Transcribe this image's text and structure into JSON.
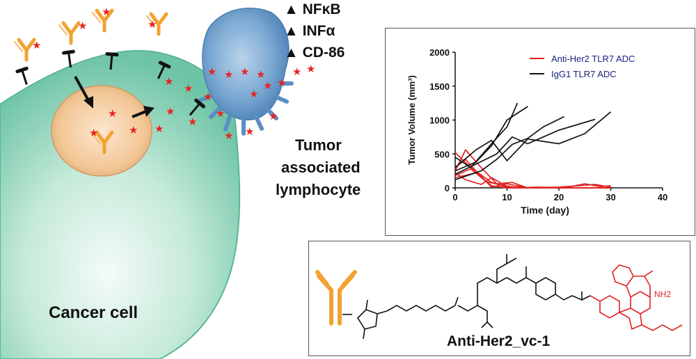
{
  "diagram": {
    "cancer_cell_label": "Cancer cell",
    "lymphocyte_label_lines": [
      "Tumor",
      "associated",
      "lymphocyte"
    ],
    "upregulated_markers": [
      "NFκB",
      "INFα",
      "CD-86"
    ],
    "marker_arrow_symbol": "▲",
    "compound_name": "Anti-Her2_vc-1",
    "amine_label": "NH2",
    "colors": {
      "cancer_cell": "#7fcfb2",
      "endosome": "#f1c79a",
      "lymphocyte": "#6e9fcb",
      "antibody": "#f0a030",
      "payload_star": "#e8231f",
      "red_series": "#e02020",
      "black_series": "#111111"
    }
  },
  "chart_data": {
    "type": "line",
    "xlabel": "Time (day)",
    "ylabel": "Tumor Volume (mm³)",
    "xlim": [
      0,
      40
    ],
    "ylim": [
      0,
      2000
    ],
    "xticks": [
      0,
      10,
      20,
      30,
      40
    ],
    "yticks": [
      0,
      500,
      1000,
      1500,
      2000
    ],
    "legend_position": "top-right",
    "series": [
      {
        "name": "Anti-Her2 TLR7 ADC",
        "color": "#e02020",
        "label_color": "#1a237e",
        "lines": [
          {
            "x": [
              0,
              3,
              7,
              10,
              14,
              21,
              30
            ],
            "y": [
              520,
              300,
              80,
              10,
              0,
              0,
              0
            ]
          },
          {
            "x": [
              0,
              2,
              5,
              8,
              11,
              14,
              20,
              27,
              30
            ],
            "y": [
              250,
              560,
              300,
              60,
              80,
              0,
              10,
              50,
              10
            ]
          },
          {
            "x": [
              0,
              2,
              5,
              7,
              10,
              14,
              21,
              30
            ],
            "y": [
              220,
              120,
              50,
              150,
              20,
              0,
              0,
              0
            ]
          },
          {
            "x": [
              0,
              3,
              6,
              9,
              12,
              16,
              21,
              25,
              28,
              30
            ],
            "y": [
              180,
              280,
              90,
              40,
              0,
              10,
              0,
              60,
              20,
              30
            ]
          },
          {
            "x": [
              0,
              2,
              4,
              7,
              10,
              14,
              21,
              30
            ],
            "y": [
              300,
              420,
              250,
              10,
              60,
              0,
              0,
              0
            ]
          },
          {
            "x": [
              0,
              4,
              7,
              10,
              14,
              21,
              30
            ],
            "y": [
              150,
              220,
              30,
              0,
              0,
              0,
              0
            ]
          }
        ]
      },
      {
        "name": "IgG1 TLR7  ADC",
        "color": "#111111",
        "label_color": "#1a237e",
        "lines": [
          {
            "x": [
              0,
              3,
              7,
              10,
              12
            ],
            "y": [
              450,
              300,
              650,
              900,
              1250
            ]
          },
          {
            "x": [
              0,
              4,
              7,
              10,
              14
            ],
            "y": [
              250,
              380,
              620,
              1000,
              1200
            ]
          },
          {
            "x": [
              0,
              5,
              8,
              11,
              14,
              17,
              21
            ],
            "y": [
              120,
              250,
              420,
              640,
              730,
              900,
              1050
            ]
          },
          {
            "x": [
              0,
              4,
              8,
              11,
              14,
              20,
              27
            ],
            "y": [
              200,
              350,
              500,
              750,
              650,
              850,
              1010
            ]
          },
          {
            "x": [
              0,
              4,
              7,
              10,
              14,
              20,
              25,
              30
            ],
            "y": [
              300,
              560,
              700,
              400,
              720,
              650,
              800,
              1120
            ]
          }
        ]
      }
    ]
  }
}
